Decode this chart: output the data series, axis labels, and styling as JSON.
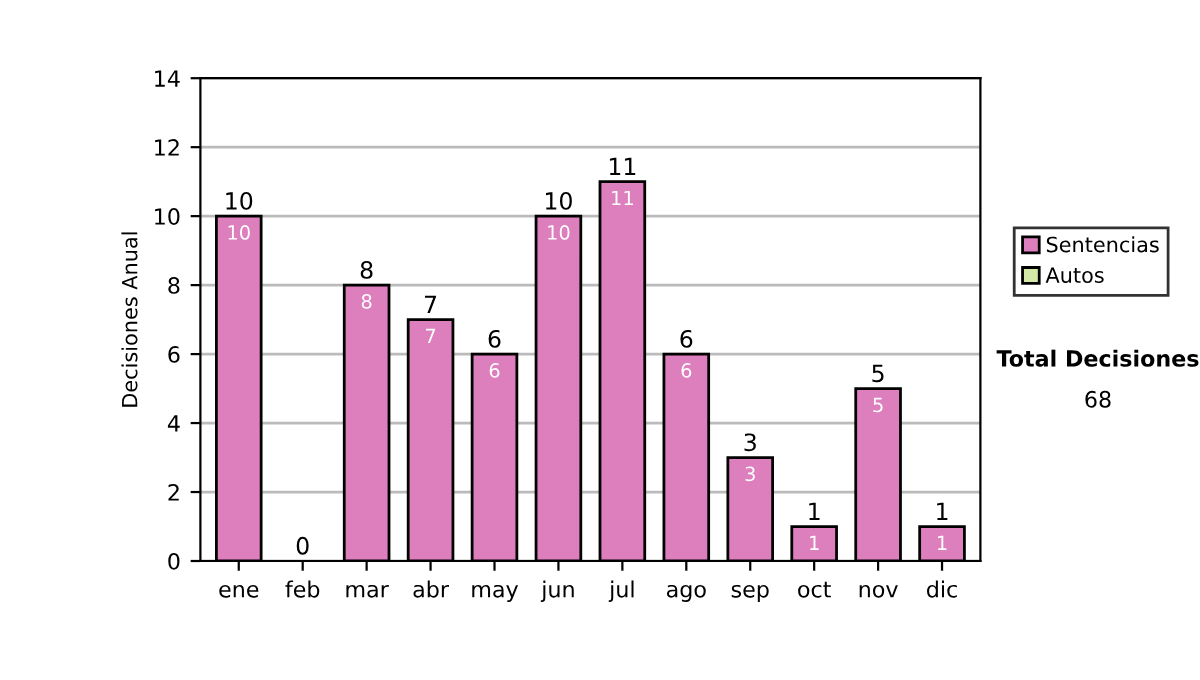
{
  "chart_data": {
    "type": "bar",
    "ylabel": "Decisiones Anual",
    "stacked": true,
    "categories": [
      "ene",
      "feb",
      "mar",
      "abr",
      "may",
      "jun",
      "jul",
      "ago",
      "sep",
      "oct",
      "nov",
      "dic"
    ],
    "series": [
      {
        "name": "Sentencias",
        "color": "#dd7ebd",
        "values": [
          10,
          0,
          8,
          7,
          6,
          10,
          11,
          6,
          3,
          1,
          5,
          1
        ],
        "value_labels": [
          "10",
          null,
          "8",
          "7",
          "6",
          "10",
          "11",
          "6",
          "3",
          "1",
          "5",
          "1"
        ]
      },
      {
        "name": "Autos",
        "color": "#d4e8a8",
        "values": [
          0,
          0,
          0,
          0,
          0,
          0,
          0,
          0,
          0,
          0,
          0,
          0
        ]
      }
    ],
    "totals": [
      "10",
      "0",
      "8",
      "7",
      "6",
      "10",
      "11",
      "6",
      "3",
      "1",
      "5",
      "1"
    ],
    "ylim": [
      0,
      14
    ],
    "yticks": [
      0,
      2,
      4,
      6,
      8,
      10,
      12,
      14
    ],
    "grid": "y",
    "legend": "right",
    "annotations": [
      "Total Decisiones",
      "68"
    ]
  }
}
